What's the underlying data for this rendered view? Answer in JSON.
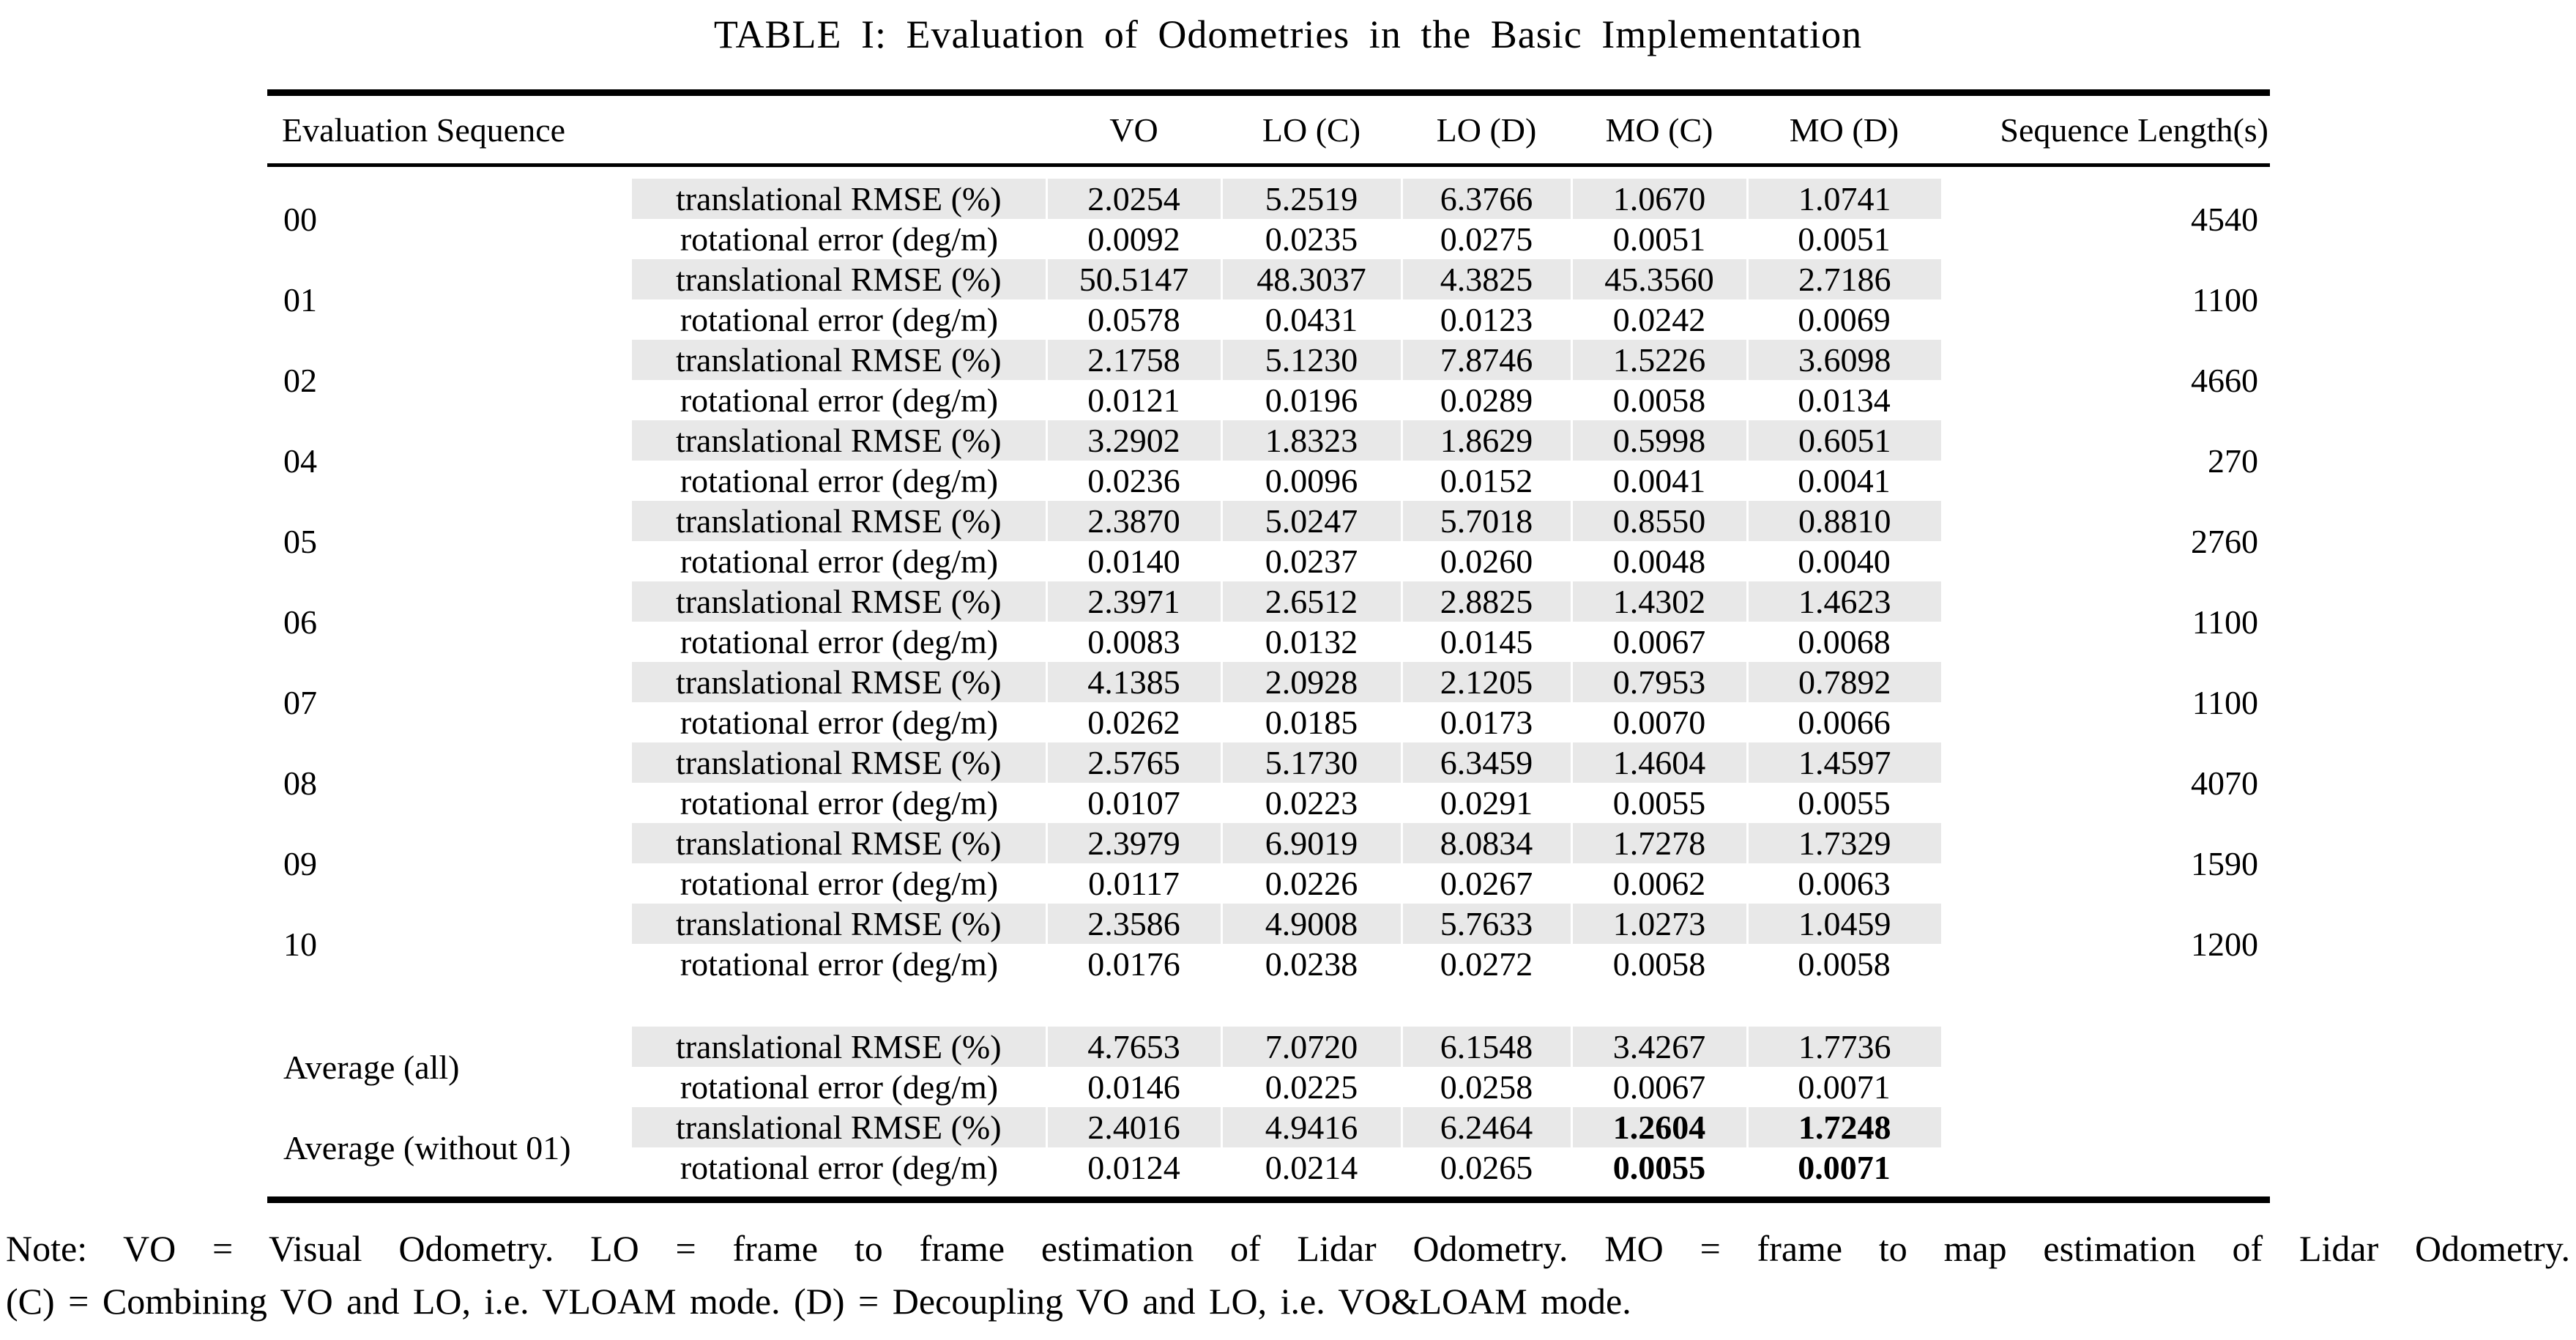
{
  "title": "TABLE I: Evaluation of Odometries in the Basic Implementation",
  "table": {
    "headers": [
      "Evaluation Sequence",
      "VO",
      "LO (C)",
      "LO (D)",
      "MO (C)",
      "MO (D)",
      "Sequence Length(s)"
    ],
    "metric_labels": [
      "translational RMSE (%)",
      "rotational error (deg/m)"
    ],
    "rows": [
      {
        "sequence": "00",
        "translational": [
          "2.0254",
          "5.2519",
          "6.3766",
          "1.0670",
          "1.0741"
        ],
        "rotational": [
          "0.0092",
          "0.0235",
          "0.0275",
          "0.0051",
          "0.0051"
        ],
        "length": "4540"
      },
      {
        "sequence": "01",
        "translational": [
          "50.5147",
          "48.3037",
          "4.3825",
          "45.3560",
          "2.7186"
        ],
        "rotational": [
          "0.0578",
          "0.0431",
          "0.0123",
          "0.0242",
          "0.0069"
        ],
        "length": "1100"
      },
      {
        "sequence": "02",
        "translational": [
          "2.1758",
          "5.1230",
          "7.8746",
          "1.5226",
          "3.6098"
        ],
        "rotational": [
          "0.0121",
          "0.0196",
          "0.0289",
          "0.0058",
          "0.0134"
        ],
        "length": "4660"
      },
      {
        "sequence": "04",
        "translational": [
          "3.2902",
          "1.8323",
          "1.8629",
          "0.5998",
          "0.6051"
        ],
        "rotational": [
          "0.0236",
          "0.0096",
          "0.0152",
          "0.0041",
          "0.0041"
        ],
        "length": "270"
      },
      {
        "sequence": "05",
        "translational": [
          "2.3870",
          "5.0247",
          "5.7018",
          "0.8550",
          "0.8810"
        ],
        "rotational": [
          "0.0140",
          "0.0237",
          "0.0260",
          "0.0048",
          "0.0040"
        ],
        "length": "2760"
      },
      {
        "sequence": "06",
        "translational": [
          "2.3971",
          "2.6512",
          "2.8825",
          "1.4302",
          "1.4623"
        ],
        "rotational": [
          "0.0083",
          "0.0132",
          "0.0145",
          "0.0067",
          "0.0068"
        ],
        "length": "1100"
      },
      {
        "sequence": "07",
        "translational": [
          "4.1385",
          "2.0928",
          "2.1205",
          "0.7953",
          "0.7892"
        ],
        "rotational": [
          "0.0262",
          "0.0185",
          "0.0173",
          "0.0070",
          "0.0066"
        ],
        "length": "1100"
      },
      {
        "sequence": "08",
        "translational": [
          "2.5765",
          "5.1730",
          "6.3459",
          "1.4604",
          "1.4597"
        ],
        "rotational": [
          "0.0107",
          "0.0223",
          "0.0291",
          "0.0055",
          "0.0055"
        ],
        "length": "4070"
      },
      {
        "sequence": "09",
        "translational": [
          "2.3979",
          "6.9019",
          "8.0834",
          "1.7278",
          "1.7329"
        ],
        "rotational": [
          "0.0117",
          "0.0226",
          "0.0267",
          "0.0062",
          "0.0063"
        ],
        "length": "1590"
      },
      {
        "sequence": "10",
        "translational": [
          "2.3586",
          "4.9008",
          "5.7633",
          "1.0273",
          "1.0459"
        ],
        "rotational": [
          "0.0176",
          "0.0238",
          "0.0272",
          "0.0058",
          "0.0058"
        ],
        "length": "1200"
      }
    ],
    "summary_rows": [
      {
        "sequence": "Average (all)",
        "translational": [
          "4.7653",
          "7.0720",
          "6.1548",
          "3.4267",
          "1.7736"
        ],
        "rotational": [
          "0.0146",
          "0.0225",
          "0.0258",
          "0.0067",
          "0.0071"
        ],
        "length": "",
        "bold_columns": []
      },
      {
        "sequence": "Average (without 01)",
        "translational": [
          "2.4016",
          "4.9416",
          "6.2464",
          "1.2604",
          "1.7248"
        ],
        "rotational": [
          "0.0124",
          "0.0214",
          "0.0265",
          "0.0055",
          "0.0071"
        ],
        "length": "",
        "bold_columns": [
          3,
          4
        ]
      }
    ]
  },
  "note": {
    "line1": "Note: VO = Visual Odometry. LO = frame to frame estimation of Lidar Odometry. MO = frame to map estimation of Lidar Odometry.",
    "line2": "(C) = Combining VO and LO, i.e. VLOAM mode. (D) = Decoupling VO and LO, i.e. VO&LOAM mode."
  },
  "colors": {
    "row_shade": "#e8e8e8",
    "rule": "#000000",
    "background": "#ffffff"
  }
}
